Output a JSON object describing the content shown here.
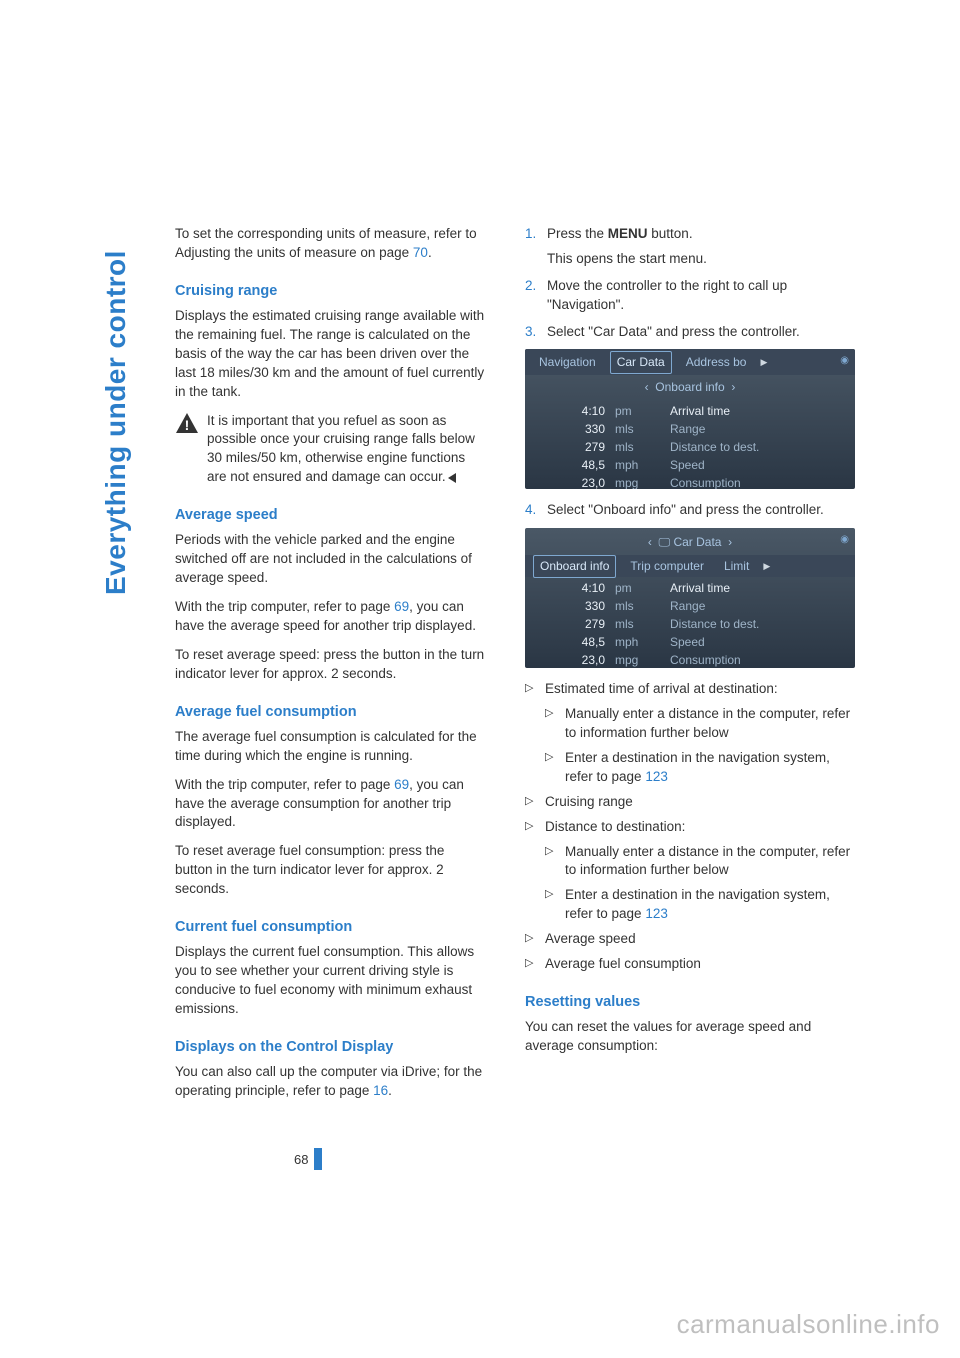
{
  "sidebar_title": "Everything under control",
  "page_number": "68",
  "watermark": "carmanualsonline.info",
  "left": {
    "intro": "To set the corresponding units of measure, refer to Adjusting the units of measure on page ",
    "intro_link": "70",
    "intro_end": ".",
    "cruising_h": "Cruising range",
    "cruising_p": "Displays the estimated cruising range available with the remaining fuel. The range is calculated on the basis of the way the car has been driven over the last 18 miles/30 km and the amount of fuel currently in the tank.",
    "warn": "It is important that you refuel as soon as possible once your cruising range falls below 30 miles/50 km, otherwise engine functions are not ensured and damage can occur.",
    "avgspeed_h": "Average speed",
    "avgspeed_p1": "Periods with the vehicle parked and the engine switched off are not included in the calculations of average speed.",
    "avgspeed_p2_a": "With the trip computer, refer to page ",
    "avgspeed_p2_link": "69",
    "avgspeed_p2_b": ", you can have the average speed for another trip displayed.",
    "avgspeed_p3": "To reset average speed: press the button in the turn indicator lever for approx. 2 seconds.",
    "avgfuel_h": "Average fuel consumption",
    "avgfuel_p1": "The average fuel consumption is calculated for the time during which the engine is running.",
    "avgfuel_p2_a": "With the trip computer, refer to page ",
    "avgfuel_p2_link": "69",
    "avgfuel_p2_b": ", you can have the average consumption for another trip displayed.",
    "avgfuel_p3": "To reset average fuel consumption: press the button in the turn indicator lever for approx. 2 seconds.",
    "curfuel_h": "Current fuel consumption",
    "curfuel_p": "Displays the current fuel consumption. This allows you to see whether your current driving style is conducive to fuel economy with minimum exhaust emissions.",
    "disp_h": "Displays on the Control Display",
    "disp_p_a": "You can also call up the computer via iDrive; for the operating principle, refer to page ",
    "disp_p_link": "16",
    "disp_p_b": "."
  },
  "right": {
    "step1_a": "Press the ",
    "step1_b": "MENU",
    "step1_c": " button.",
    "step1_extra": "This opens the start menu.",
    "step2": "Move the controller to the right to call up \"Navigation\".",
    "step3": "Select \"Car Data\" and press the controller.",
    "step4": "Select \"Onboard info\" and press the controller.",
    "b1": "Estimated time of arrival at destination:",
    "b1_1": "Manually enter a distance in the computer, refer to information further below",
    "b1_2a": "Enter a destination in the navigation system, refer to page ",
    "b1_2link": "123",
    "b2": "Cruising range",
    "b3": "Distance to destination:",
    "b3_1": "Manually enter a distance in the computer, refer to information further below",
    "b3_2a": "Enter a destination in the navigation system, refer to page ",
    "b3_2link": "123",
    "b4": "Average speed",
    "b5": "Average fuel consumption",
    "reset_h": "Resetting values",
    "reset_p": "You can reset the values for average speed and average consumption:"
  },
  "screenshot1": {
    "tabs": [
      "Navigation",
      "Car Data",
      "Address bo"
    ],
    "active_tab_index": 1,
    "subtitle": "Onboard info",
    "rows": [
      {
        "val": "4:10",
        "unit": "pm",
        "label": "Arrival time",
        "hl": true
      },
      {
        "val": "330",
        "unit": "mls",
        "label": "Range",
        "hl": false
      },
      {
        "val": "279",
        "unit": "mls",
        "label": "Distance to dest.",
        "hl": false
      },
      {
        "val": "48,5",
        "unit": "mph",
        "label": "Speed",
        "hl": false
      },
      {
        "val": "23,0",
        "unit": "mpg",
        "label": "Consumption",
        "hl": false
      }
    ]
  },
  "screenshot2": {
    "breadcrumb": "Car Data",
    "tabs": [
      "Onboard info",
      "Trip computer",
      "Limit"
    ],
    "active_tab_index": 0,
    "rows": [
      {
        "val": "4:10",
        "unit": "pm",
        "label": "Arrival time",
        "hl": true
      },
      {
        "val": "330",
        "unit": "mls",
        "label": "Range",
        "hl": false
      },
      {
        "val": "279",
        "unit": "mls",
        "label": "Distance to dest.",
        "hl": false
      },
      {
        "val": "48,5",
        "unit": "mph",
        "label": "Speed",
        "hl": false
      },
      {
        "val": "23,0",
        "unit": "mpg",
        "label": "Consumption",
        "hl": false
      }
    ]
  }
}
